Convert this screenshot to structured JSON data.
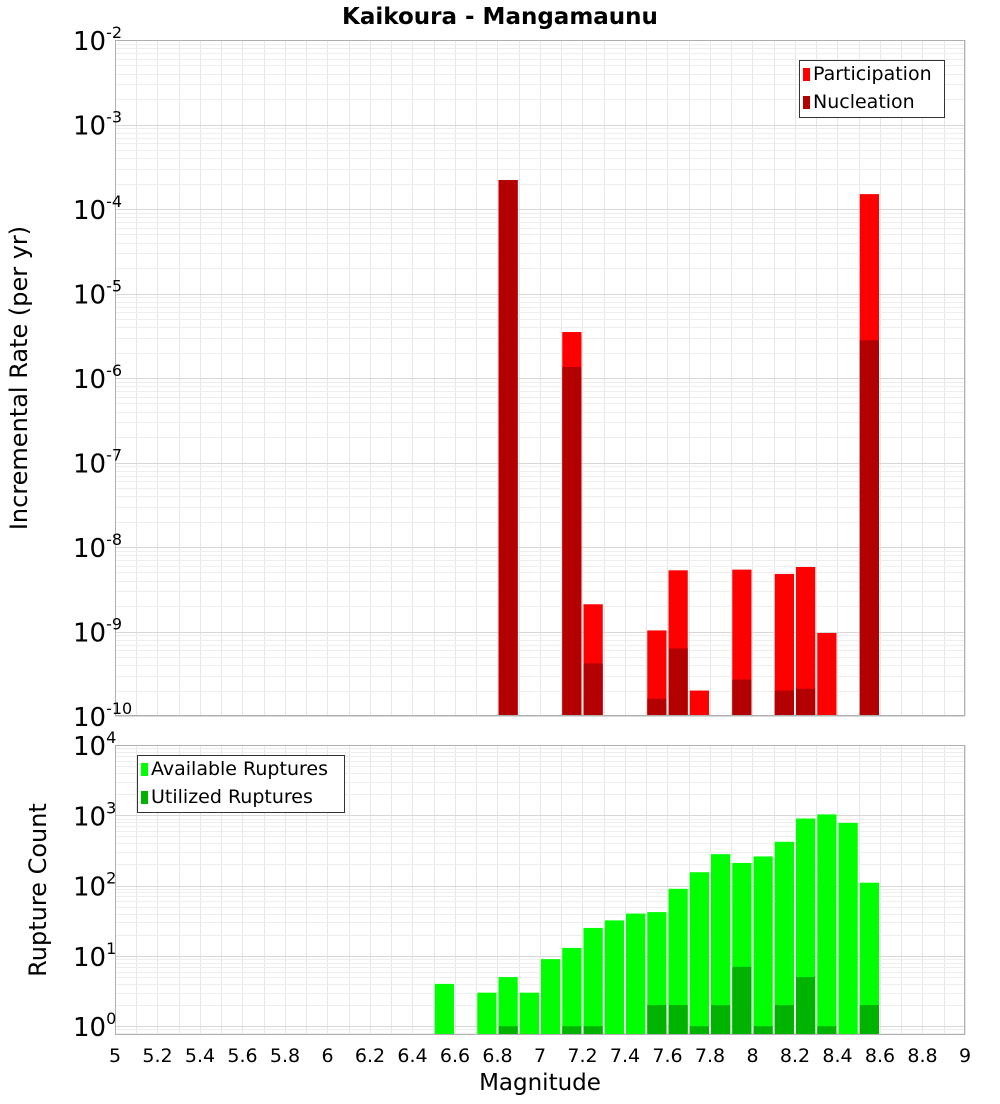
{
  "chart_data": [
    {
      "type": "bar",
      "title": "Kaikoura - Mangamaunu",
      "xlabel": "",
      "ylabel": "Incremental Rate (per yr)",
      "y_scale": "log",
      "ylim": [
        1e-10,
        0.01
      ],
      "xlim": [
        5,
        9
      ],
      "bar_width": 0.1,
      "grid": true,
      "legend_position": "top-right",
      "y_ticks": [
        {
          "base": "10",
          "exp": "-2"
        },
        {
          "base": "10",
          "exp": "-3"
        },
        {
          "base": "10",
          "exp": "-4"
        },
        {
          "base": "10",
          "exp": "-5"
        },
        {
          "base": "10",
          "exp": "-6"
        },
        {
          "base": "10",
          "exp": "-7"
        },
        {
          "base": "10",
          "exp": "-8"
        },
        {
          "base": "10",
          "exp": "-9"
        },
        {
          "base": "10",
          "exp": "-10"
        }
      ],
      "series": [
        {
          "name": "Participation",
          "color": "#ff0000",
          "points": [
            {
              "x": 6.85,
              "y": 0.00022
            },
            {
              "x": 7.15,
              "y": 3.5e-06
            },
            {
              "x": 7.25,
              "y": 2.1e-09
            },
            {
              "x": 7.55,
              "y": 1.03e-09
            },
            {
              "x": 7.65,
              "y": 5.3e-09
            },
            {
              "x": 7.75,
              "y": 2e-10
            },
            {
              "x": 7.95,
              "y": 5.4e-09
            },
            {
              "x": 8.15,
              "y": 4.8e-09
            },
            {
              "x": 8.25,
              "y": 5.8e-09
            },
            {
              "x": 8.35,
              "y": 9.6e-10
            },
            {
              "x": 8.55,
              "y": 0.00015
            }
          ]
        },
        {
          "name": "Nucleation",
          "color": "#b30000",
          "points": [
            {
              "x": 6.85,
              "y": 0.00022
            },
            {
              "x": 7.15,
              "y": 1.35e-06
            },
            {
              "x": 7.25,
              "y": 4.2e-10
            },
            {
              "x": 7.55,
              "y": 1.6e-10
            },
            {
              "x": 7.65,
              "y": 6.3e-10
            },
            {
              "x": 7.95,
              "y": 2.7e-10
            },
            {
              "x": 8.15,
              "y": 2e-10
            },
            {
              "x": 8.25,
              "y": 2.1e-10
            },
            {
              "x": 8.55,
              "y": 2.8e-06
            }
          ]
        }
      ]
    },
    {
      "type": "bar",
      "title": "",
      "xlabel": "Magnitude",
      "ylabel": "Rupture Count",
      "y_scale": "log",
      "ylim": [
        0.75,
        10000
      ],
      "xlim": [
        5,
        9
      ],
      "bar_width": 0.1,
      "grid": true,
      "legend_position": "top-left",
      "x_tick_labels": [
        "5",
        "5.2",
        "5.4",
        "5.6",
        "5.8",
        "6",
        "6.2",
        "6.4",
        "6.6",
        "6.8",
        "7",
        "7.2",
        "7.4",
        "7.6",
        "7.8",
        "8",
        "8.2",
        "8.4",
        "8.6",
        "8.8",
        "9"
      ],
      "y_ticks": [
        {
          "base": "10",
          "exp": "4"
        },
        {
          "base": "10",
          "exp": "3"
        },
        {
          "base": "10",
          "exp": "2"
        },
        {
          "base": "10",
          "exp": "1"
        },
        {
          "base": "10",
          "exp": "0"
        }
      ],
      "series": [
        {
          "name": "Available Ruptures",
          "color": "#00ff00",
          "points": [
            {
              "x": 6.55,
              "y": 4
            },
            {
              "x": 6.75,
              "y": 3
            },
            {
              "x": 6.85,
              "y": 5
            },
            {
              "x": 6.95,
              "y": 3
            },
            {
              "x": 7.05,
              "y": 9
            },
            {
              "x": 7.15,
              "y": 13
            },
            {
              "x": 7.25,
              "y": 25
            },
            {
              "x": 7.35,
              "y": 32
            },
            {
              "x": 7.45,
              "y": 40
            },
            {
              "x": 7.55,
              "y": 42
            },
            {
              "x": 7.65,
              "y": 90
            },
            {
              "x": 7.75,
              "y": 155
            },
            {
              "x": 7.85,
              "y": 280
            },
            {
              "x": 7.95,
              "y": 210
            },
            {
              "x": 8.05,
              "y": 260
            },
            {
              "x": 8.15,
              "y": 420
            },
            {
              "x": 8.25,
              "y": 900
            },
            {
              "x": 8.35,
              "y": 1030
            },
            {
              "x": 8.45,
              "y": 780
            },
            {
              "x": 8.55,
              "y": 110
            }
          ]
        },
        {
          "name": "Utilized Ruptures",
          "color": "#00b300",
          "points": [
            {
              "x": 6.85,
              "y": 1
            },
            {
              "x": 7.15,
              "y": 1
            },
            {
              "x": 7.25,
              "y": 1
            },
            {
              "x": 7.55,
              "y": 2
            },
            {
              "x": 7.65,
              "y": 2
            },
            {
              "x": 7.75,
              "y": 1
            },
            {
              "x": 7.85,
              "y": 2
            },
            {
              "x": 7.95,
              "y": 7
            },
            {
              "x": 8.05,
              "y": 1
            },
            {
              "x": 8.15,
              "y": 2
            },
            {
              "x": 8.25,
              "y": 5
            },
            {
              "x": 8.35,
              "y": 1
            },
            {
              "x": 8.55,
              "y": 2
            }
          ]
        }
      ]
    }
  ]
}
